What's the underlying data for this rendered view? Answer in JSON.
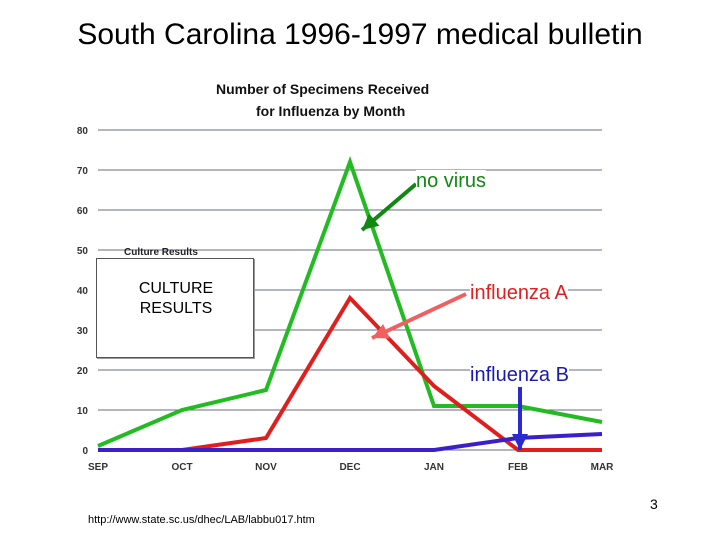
{
  "slide": {
    "title": "South Carolina 1996-1997 medical bulletin",
    "page_number": "3",
    "source_url": "http://www.state.sc.us/dhec/LAB/labbu017.htm"
  },
  "annotations": {
    "no_virus": "no virus",
    "influenza_a": "influenza A",
    "influenza_b": "influenza B",
    "culture_results": "CULTURE\nRESULTS",
    "culture_header": "Culture Results"
  },
  "colors": {
    "no_virus": "#22bb22",
    "influenza_a": "#e01e1e",
    "influenza_b": "#3b1fc8",
    "arrow_green": "#118811",
    "arrow_red": "#f06060",
    "arrow_blue": "#2a2ad0",
    "grid": "#6a6a8a",
    "annot_green": "#118811",
    "annot_red": "#e01e1e",
    "annot_blue": "#1a1ab0"
  },
  "chart_data": {
    "type": "line",
    "title": "Number of Specimens Received\nfor Influenza by Month",
    "categories": [
      "SEP",
      "OCT",
      "NOV",
      "DEC",
      "JAN",
      "FEB",
      "MAR"
    ],
    "yticks": [
      "0",
      "10",
      "20",
      "30",
      "40",
      "50",
      "60",
      "70",
      "80"
    ],
    "ylim": [
      0,
      80
    ],
    "grid": true,
    "series": [
      {
        "name": "no virus",
        "values": [
          1,
          10,
          15,
          72,
          11,
          11,
          7
        ]
      },
      {
        "name": "influenza A",
        "values": [
          0,
          0,
          3,
          38,
          16,
          0,
          0
        ]
      },
      {
        "name": "influenza B",
        "values": [
          0,
          0,
          0,
          0,
          0,
          3,
          4
        ]
      }
    ]
  }
}
